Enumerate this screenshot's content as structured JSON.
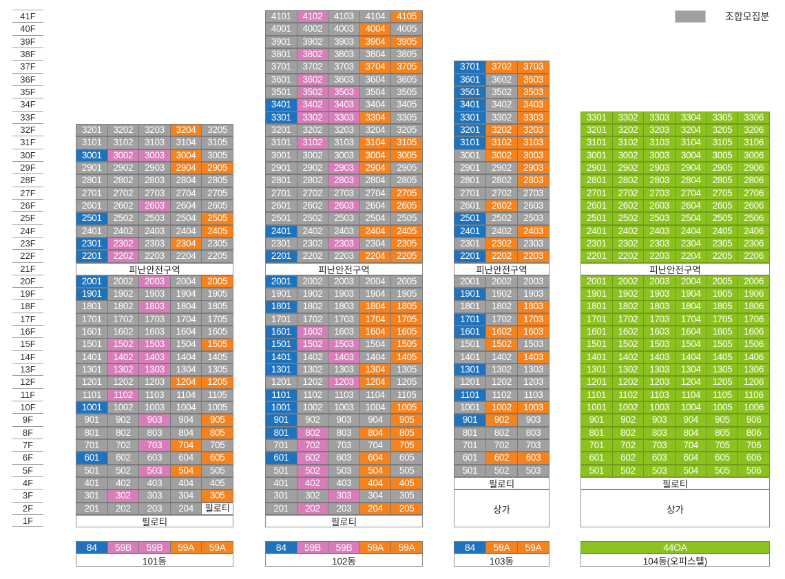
{
  "legend": {
    "label": "조합모집분",
    "color": "#a0a0a0"
  },
  "colors": {
    "G": "#a0a0a0",
    "B": "#1f73bd",
    "P": "#d87cba",
    "O": "#f4821f",
    "L": "#8cc21f"
  },
  "floors": [
    "41F",
    "40F",
    "39F",
    "38F",
    "37F",
    "36F",
    "35F",
    "34F",
    "33F",
    "32F",
    "31F",
    "30F",
    "29F",
    "28F",
    "27F",
    "26F",
    "25F",
    "24F",
    "23F",
    "22F",
    "21F",
    "20F",
    "19F",
    "18F",
    "17F",
    "16F",
    "15F",
    "14F",
    "13F",
    "12F",
    "11F",
    "10F",
    "9F",
    "8F",
    "7F",
    "6F",
    "5F",
    "4F",
    "3F",
    "2F",
    "1F"
  ],
  "buildings": [
    {
      "name": "101동",
      "types": [
        {
          "label": "84",
          "c": "B"
        },
        {
          "label": "59B",
          "c": "P"
        },
        {
          "label": "59B",
          "c": "P"
        },
        {
          "label": "59A",
          "c": "O"
        },
        {
          "label": "59A",
          "c": "O"
        }
      ],
      "specials": [
        {
          "from": 21,
          "to": 21,
          "label": "피난안전구역"
        },
        {
          "from": 1,
          "to": 1,
          "label": "필로티"
        }
      ],
      "rows": [
        {
          "f": 32,
          "u": "3201 3202 3203 3204 3205",
          "c": "GGGOG"
        },
        {
          "f": 31,
          "u": "3101 3102 3103 3104 3105",
          "c": "GGGGG"
        },
        {
          "f": 30,
          "u": "3001 3002 3003 3004 3005",
          "c": "BPPOG"
        },
        {
          "f": 29,
          "u": "2901 2902 2903 2904 2905",
          "c": "GGGOO"
        },
        {
          "f": 28,
          "u": "2801 2802 2803 2804 2805",
          "c": "GGGGG"
        },
        {
          "f": 27,
          "u": "2701 2702 2703 2704 2705",
          "c": "GGGGG"
        },
        {
          "f": 26,
          "u": "2601 2602 2603 2604 2605",
          "c": "GGPGG"
        },
        {
          "f": 25,
          "u": "2501 2502 2503 2504 2505",
          "c": "BGGGO"
        },
        {
          "f": 24,
          "u": "2401 2402 2403 2404 2405",
          "c": "GGGGO"
        },
        {
          "f": 23,
          "u": "2301 2302 2303 2304 2305",
          "c": "BPGOG"
        },
        {
          "f": 22,
          "u": "2201 2202 2203 2204 2205",
          "c": "BPGGG"
        },
        {
          "f": 20,
          "u": "2001 2002 2003 2004 2005",
          "c": "BGPGO"
        },
        {
          "f": 19,
          "u": "1901 1902 1903 1904 1905",
          "c": "BGGGG"
        },
        {
          "f": 18,
          "u": "1801 1802 1803 1804 1805",
          "c": "GGPGG"
        },
        {
          "f": 17,
          "u": "1701 1702 1703 1704 1705",
          "c": "GGGGG"
        },
        {
          "f": 16,
          "u": "1601 1602 1603 1604 1605",
          "c": "GGGGG"
        },
        {
          "f": 15,
          "u": "1501 1502 1503 1504 1505",
          "c": "GPPGO"
        },
        {
          "f": 14,
          "u": "1401 1402 1403 1404 1405",
          "c": "GPPGG"
        },
        {
          "f": 13,
          "u": "1301 1302 1303 1304 1305",
          "c": "GPPGG"
        },
        {
          "f": 12,
          "u": "1201 1202 1203 1204 1205",
          "c": "GGGOO"
        },
        {
          "f": 11,
          "u": "1101 1102 1103 1104 1105",
          "c": "GPGGG"
        },
        {
          "f": 10,
          "u": "1001 1002 1003 1004 1005",
          "c": "BGGGG"
        },
        {
          "f": 9,
          "u": "901 902 903 904 905",
          "c": "GGPGO"
        },
        {
          "f": 8,
          "u": "801 802 803 804 805",
          "c": "GGGGO"
        },
        {
          "f": 7,
          "u": "701 702 703 704 705",
          "c": "GGPOG"
        },
        {
          "f": 6,
          "u": "601 602 603 604 605",
          "c": "BGGGO"
        },
        {
          "f": 5,
          "u": "501 502 503 504 505",
          "c": "GGPOG"
        },
        {
          "f": 4,
          "u": "401 402 403 404 405",
          "c": "GGGGG"
        },
        {
          "f": 3,
          "u": "301 302 303 304 305",
          "c": "GPGGO"
        },
        {
          "f": 2,
          "u": "201 202 203 204 필로티",
          "c": "GGGGW"
        }
      ]
    },
    {
      "name": "102동",
      "types": [
        {
          "label": "84",
          "c": "B"
        },
        {
          "label": "59B",
          "c": "P"
        },
        {
          "label": "59B",
          "c": "P"
        },
        {
          "label": "59A",
          "c": "O"
        },
        {
          "label": "59A",
          "c": "O"
        }
      ],
      "specials": [
        {
          "from": 21,
          "to": 21,
          "label": "피난안전구역"
        },
        {
          "from": 1,
          "to": 1,
          "label": "필로티"
        }
      ],
      "rows": [
        {
          "f": 41,
          "u": "4101 4102 4103 4104 4105",
          "c": "GPGGO"
        },
        {
          "f": 40,
          "u": "4001 4002 4003 4004 4005",
          "c": "GGGOG"
        },
        {
          "f": 39,
          "u": "3901 3902 3903 3904 3905",
          "c": "GGGOO"
        },
        {
          "f": 38,
          "u": "3801 3802 3803 3804 3805",
          "c": "GPGGG"
        },
        {
          "f": 37,
          "u": "3701 3702 3703 3704 3705",
          "c": "GGGOO"
        },
        {
          "f": 36,
          "u": "3601 3602 3603 3604 3605",
          "c": "GPGGG"
        },
        {
          "f": 35,
          "u": "3501 3502 3503 3504 3505",
          "c": "GPPGG"
        },
        {
          "f": 34,
          "u": "3401 3402 3403 3404 3405",
          "c": "BPPGG"
        },
        {
          "f": 33,
          "u": "3301 3302 3303 3304 3305",
          "c": "BPPOG"
        },
        {
          "f": 32,
          "u": "3201 3202 3203 3204 3205",
          "c": "GGGGG"
        },
        {
          "f": 31,
          "u": "3101 3102 3103 3104 3105",
          "c": "GPGOO"
        },
        {
          "f": 30,
          "u": "3001 3002 3003 3004 3005",
          "c": "GGGOO"
        },
        {
          "f": 29,
          "u": "2901 2902 2903 2904 2905",
          "c": "GGPOG"
        },
        {
          "f": 28,
          "u": "2801 2802 2803 2804 2805",
          "c": "GGPGG"
        },
        {
          "f": 27,
          "u": "2701 2702 2703 2704 2705",
          "c": "GGGGO"
        },
        {
          "f": 26,
          "u": "2601 2602 2603 2604 2605",
          "c": "GGPGO"
        },
        {
          "f": 25,
          "u": "2501 2502 2503 2504 2505",
          "c": "GGGGG"
        },
        {
          "f": 24,
          "u": "2401 2402 2403 2404 2405",
          "c": "BGGOO"
        },
        {
          "f": 23,
          "u": "2301 2302 2303 2304 2305",
          "c": "GGPGO"
        },
        {
          "f": 22,
          "u": "2201 2202 2203 2204 2205",
          "c": "BGGOO"
        },
        {
          "f": 20,
          "u": "2001 2002 2003 2004 2005",
          "c": "BGGGG"
        },
        {
          "f": 19,
          "u": "1901 1902 1903 1904 1905",
          "c": "GGGGG"
        },
        {
          "f": 18,
          "u": "1801 1802 1803 1804 1805",
          "c": "BGGOO"
        },
        {
          "f": 17,
          "u": "1701 1702 1703 1704 1705",
          "c": "GGGOO"
        },
        {
          "f": 16,
          "u": "1601 1602 1603 1604 1605",
          "c": "BPGOO"
        },
        {
          "f": 15,
          "u": "1501 1502 1503 1504 1505",
          "c": "BPPGO"
        },
        {
          "f": 14,
          "u": "1401 1402 1403 1404 1405",
          "c": "BGPGO"
        },
        {
          "f": 13,
          "u": "1301 1302 1303 1304 1305",
          "c": "BGGOG"
        },
        {
          "f": 12,
          "u": "1201 1202 1203 1204 1205",
          "c": "GGPOG"
        },
        {
          "f": 11,
          "u": "1101 1102 1103 1104 1105",
          "c": "BGGGG"
        },
        {
          "f": 10,
          "u": "1001 1002 1003 1004 1005",
          "c": "BGGGO"
        },
        {
          "f": 9,
          "u": "901 902 903 904 905",
          "c": "BGGGO"
        },
        {
          "f": 8,
          "u": "801 802 803 804 805",
          "c": "BPGOO"
        },
        {
          "f": 7,
          "u": "701 702 703 704 705",
          "c": "GPGGO"
        },
        {
          "f": 6,
          "u": "601 602 603 604 605",
          "c": "BPGOG"
        },
        {
          "f": 5,
          "u": "501 502 503 504 505",
          "c": "GPGOG"
        },
        {
          "f": 4,
          "u": "401 402 403 404 405",
          "c": "GPGOO"
        },
        {
          "f": 3,
          "u": "301 302 303 304 305",
          "c": "GGPGG"
        },
        {
          "f": 2,
          "u": "201 202 203 204 205",
          "c": "GPGOO"
        }
      ]
    },
    {
      "name": "103동",
      "types": [
        {
          "label": "84",
          "c": "B"
        },
        {
          "label": "59A",
          "c": "O"
        },
        {
          "label": "59A",
          "c": "O"
        }
      ],
      "specials": [
        {
          "from": 21,
          "to": 21,
          "label": "피난안전구역"
        },
        {
          "from": 4,
          "to": 4,
          "label": "필로티"
        },
        {
          "from": 1,
          "to": 3,
          "label": "상가"
        }
      ],
      "rows": [
        {
          "f": 37,
          "u": "3701 3702 3703",
          "c": "BOO"
        },
        {
          "f": 36,
          "u": "3601 3602 3603",
          "c": "BGO"
        },
        {
          "f": 35,
          "u": "3501 3502 3503",
          "c": "BGO"
        },
        {
          "f": 34,
          "u": "3401 3402 3403",
          "c": "BGO"
        },
        {
          "f": 33,
          "u": "3301 3302 3303",
          "c": "BGO"
        },
        {
          "f": 32,
          "u": "3201 3202 3203",
          "c": "BOO"
        },
        {
          "f": 31,
          "u": "3101 3102 3103",
          "c": "BOO"
        },
        {
          "f": 30,
          "u": "3001 3002 3003",
          "c": "GOO"
        },
        {
          "f": 29,
          "u": "2901 2902 2903",
          "c": "GGO"
        },
        {
          "f": 28,
          "u": "2801 2802 2803",
          "c": "GGO"
        },
        {
          "f": 27,
          "u": "2701 2702 2703",
          "c": "GGG"
        },
        {
          "f": 26,
          "u": "2601 2602 2603",
          "c": "GOG"
        },
        {
          "f": 25,
          "u": "2501 2502 2503",
          "c": "BGG"
        },
        {
          "f": 24,
          "u": "2401 2402 2403",
          "c": "BGO"
        },
        {
          "f": 23,
          "u": "2301 2302 2303",
          "c": "GOG"
        },
        {
          "f": 22,
          "u": "2201 2202 2203",
          "c": "BOO"
        },
        {
          "f": 20,
          "u": "2001 2002 2003",
          "c": "GGG"
        },
        {
          "f": 19,
          "u": "1901 1902 1903",
          "c": "BGG"
        },
        {
          "f": 18,
          "u": "1801 1802 1803",
          "c": "GGO"
        },
        {
          "f": 17,
          "u": "1701 1702 1703",
          "c": "BGO"
        },
        {
          "f": 16,
          "u": "1601 1602 1603",
          "c": "BOO"
        },
        {
          "f": 15,
          "u": "1501 1502 1503",
          "c": "GOG"
        },
        {
          "f": 14,
          "u": "1401 1402 1403",
          "c": "GGO"
        },
        {
          "f": 13,
          "u": "1301 1302 1303",
          "c": "BGG"
        },
        {
          "f": 12,
          "u": "1201 1202 1203",
          "c": "GGG"
        },
        {
          "f": 11,
          "u": "1101 1102 1103",
          "c": "BGG"
        },
        {
          "f": 10,
          "u": "1001 1002 1003",
          "c": "GOO"
        },
        {
          "f": 9,
          "u": "901 902 903",
          "c": "BOG"
        },
        {
          "f": 8,
          "u": "801 802 803",
          "c": "GGG"
        },
        {
          "f": 7,
          "u": "701 702 703",
          "c": "GGG"
        },
        {
          "f": 6,
          "u": "601 602 603",
          "c": "GOO"
        },
        {
          "f": 5,
          "u": "501 502 503",
          "c": "GGG"
        }
      ]
    },
    {
      "name": "104동(오피스텔)",
      "types": [
        {
          "label": "44OA",
          "c": "L",
          "span": 6
        }
      ],
      "specials": [
        {
          "from": 21,
          "to": 21,
          "label": "피난안전구역"
        },
        {
          "from": 4,
          "to": 4,
          "label": "필로티"
        },
        {
          "from": 1,
          "to": 3,
          "label": "상가"
        }
      ],
      "rows": [
        {
          "f": 33,
          "u": "3301 3302 3303 3304 3305 3306",
          "c": "LLLLLL"
        },
        {
          "f": 32,
          "u": "3201 3202 3203 3204 3205 3206",
          "c": "LLLLLL"
        },
        {
          "f": 31,
          "u": "3101 3102 3103 3104 3105 3106",
          "c": "LLLLLL"
        },
        {
          "f": 30,
          "u": "3001 3002 3003 3004 3005 3006",
          "c": "LLLLLL"
        },
        {
          "f": 29,
          "u": "2901 2902 2903 2904 2905 2906",
          "c": "LLLLLL"
        },
        {
          "f": 28,
          "u": "2801 2802 2803 2804 2805 2806",
          "c": "LLLLLL"
        },
        {
          "f": 27,
          "u": "2701 2702 2703 2704 2705 2706",
          "c": "LLLLLL"
        },
        {
          "f": 26,
          "u": "2601 2602 2603 2604 2605 2606",
          "c": "LLLLLL"
        },
        {
          "f": 25,
          "u": "2501 2502 2503 2504 2505 2506",
          "c": "LLLLLL"
        },
        {
          "f": 24,
          "u": "2401 2402 2403 2404 2405 2406",
          "c": "LLLLLL"
        },
        {
          "f": 23,
          "u": "2301 2302 2303 2304 2305 2306",
          "c": "LLLLLL"
        },
        {
          "f": 22,
          "u": "2201 2202 2203 2204 2205 2206",
          "c": "LLLLLL"
        },
        {
          "f": 20,
          "u": "2001 2002 2003 2004 2005 2006",
          "c": "LLLLLL"
        },
        {
          "f": 19,
          "u": "1901 1902 1903 1904 1905 1906",
          "c": "LLLLLL"
        },
        {
          "f": 18,
          "u": "1801 1802 1803 1804 1805 1806",
          "c": "LLLLLL"
        },
        {
          "f": 17,
          "u": "1701 1702 1703 1704 1705 1706",
          "c": "LLLLLL"
        },
        {
          "f": 16,
          "u": "1601 1602 1603 1604 1605 1606",
          "c": "LLLLLL"
        },
        {
          "f": 15,
          "u": "1501 1502 1503 1504 1505 1506",
          "c": "LLLLLL"
        },
        {
          "f": 14,
          "u": "1401 1402 1403 1404 1405 1406",
          "c": "LLLLLL"
        },
        {
          "f": 13,
          "u": "1301 1302 1303 1304 1305 1306",
          "c": "LLLLLL"
        },
        {
          "f": 12,
          "u": "1201 1202 1203 1204 1205 1206",
          "c": "LLLLLL"
        },
        {
          "f": 11,
          "u": "1101 1102 1103 1104 1105 1106",
          "c": "LLLLLL"
        },
        {
          "f": 10,
          "u": "1001 1002 1003 1004 1005 1006",
          "c": "LLLLLL"
        },
        {
          "f": 9,
          "u": "901 902 903 904 905 906",
          "c": "LLLLLL"
        },
        {
          "f": 8,
          "u": "801 802 803 804 805 806",
          "c": "LLLLLL"
        },
        {
          "f": 7,
          "u": "701 702 703 704 705 706",
          "c": "LLLLLL"
        },
        {
          "f": 6,
          "u": "601 602 603 604 605 606",
          "c": "LLLLLL"
        },
        {
          "f": 5,
          "u": "501 502 503 504 505 506",
          "c": "LLLLLL"
        }
      ]
    }
  ]
}
